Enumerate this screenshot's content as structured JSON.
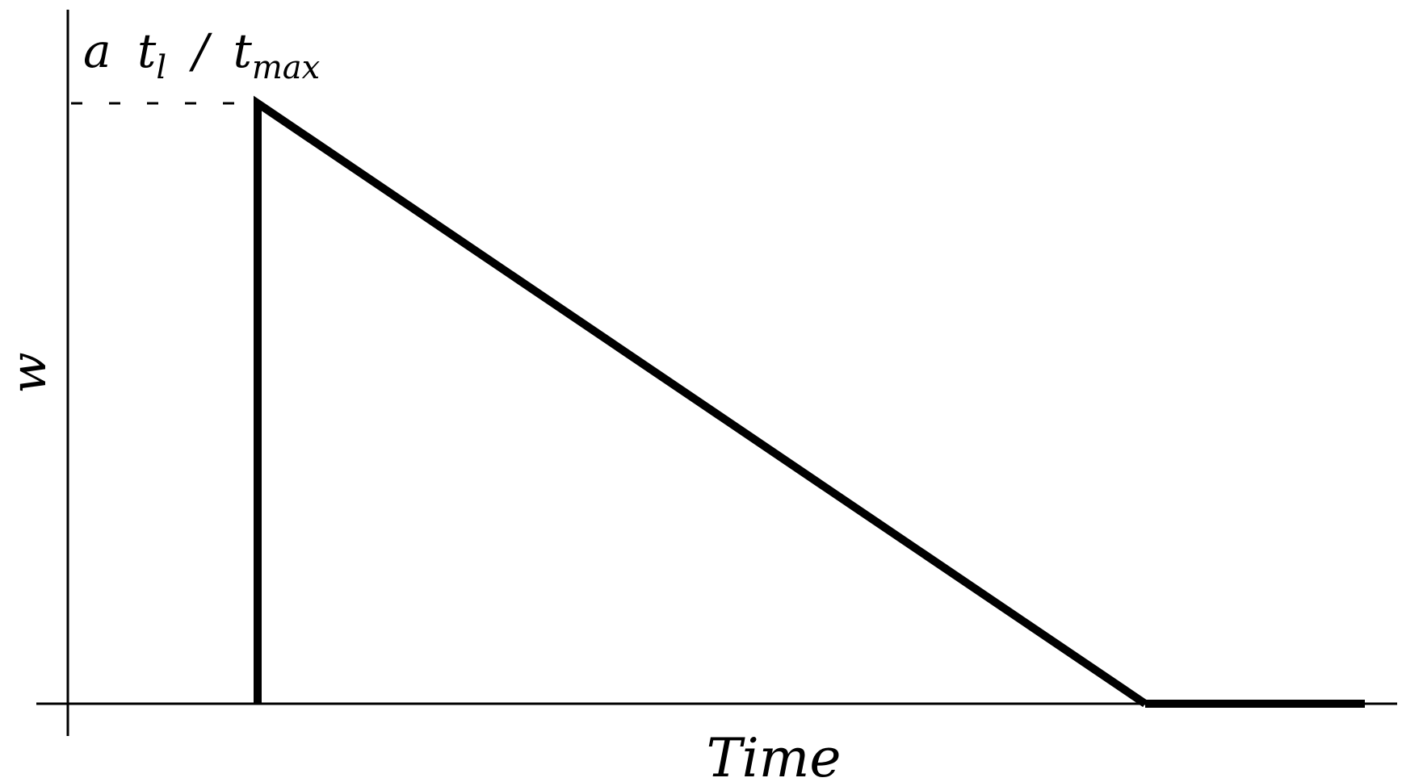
{
  "diagram": {
    "y_axis_label": "w",
    "x_axis_label": "Time",
    "peak_label": {
      "prefix": "a",
      "t1_base": "t",
      "t1_sub": "l",
      "separator": "/",
      "tmax_base": "t",
      "tmax_sub": "max"
    },
    "colors": {
      "ink": "#000000",
      "background": "#ffffff"
    }
  }
}
